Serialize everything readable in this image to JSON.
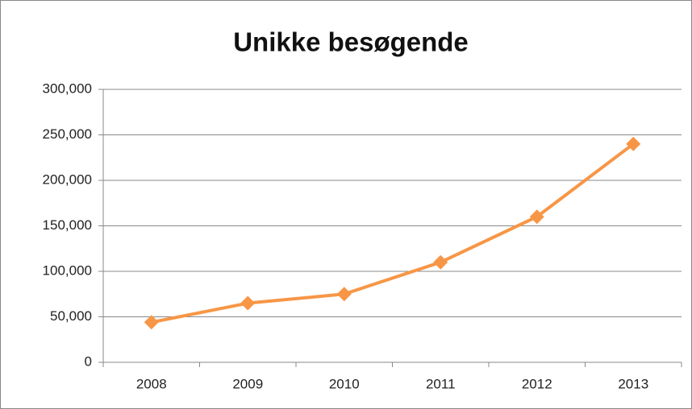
{
  "chart_data": {
    "type": "line",
    "title": "Unikke besøgende",
    "categories": [
      "2008",
      "2009",
      "2010",
      "2011",
      "2012",
      "2013"
    ],
    "series": [
      {
        "name": "Unikke besøgende",
        "color": "#f79646",
        "values": [
          44000,
          65000,
          75000,
          110000,
          160000,
          240000
        ]
      }
    ],
    "ylim": [
      0,
      300000
    ],
    "yticks": [
      0,
      {
        "value": 50000,
        "label": "50,000"
      },
      {
        "value": 100000,
        "label": "100,000"
      },
      {
        "value": 150000,
        "label": "150,000"
      },
      {
        "value": 200000,
        "label": "200,000"
      },
      {
        "value": 250000,
        "label": "250,000"
      },
      {
        "value": 300000,
        "label": "300,000"
      }
    ],
    "grid": true
  }
}
